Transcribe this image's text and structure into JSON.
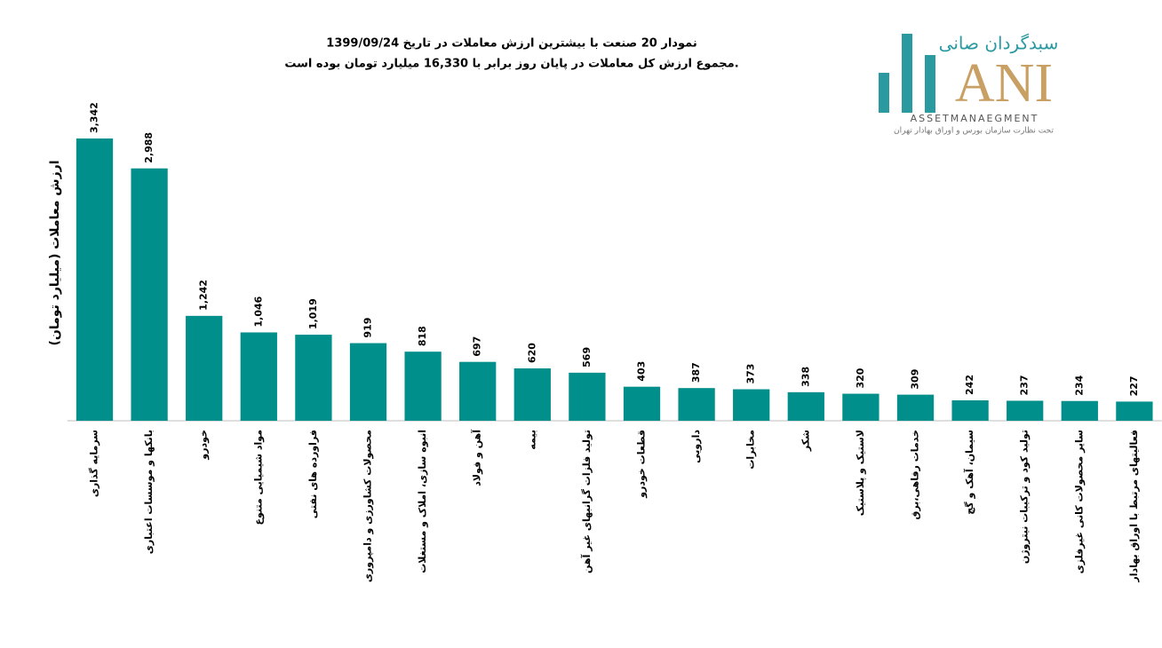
{
  "chart_data": {
    "type": "bar",
    "title": "نمودار  20 صنعت با بیشترین ارزش معاملات در تاریخ 1399/09/24",
    "subtitle": "مجموع ارزش  کل معاملات در پایان روز برابر با 16,330 میلیارد تومان بوده است.",
    "y_label": "ارزش معاملات (میلیارد تومان)",
    "categories": [
      "سرمایه گذاری",
      "بانکها و موسسات اعتباری",
      "خودرو",
      "مواد شیمیایی متنوع",
      "فراورده های نفتی",
      "محصولات کشاورزی و دامپروری",
      "انبوه سازی، املاک و مستغلات",
      "آهن و فولاد",
      "بیمه",
      "تولید فلزات گرانبهای غیر آهن",
      "قطعات خودرو",
      "دارویی",
      "مخابرات",
      "شکر",
      "لاستیک و پلاستیک",
      "خدمات رفاهی،برق",
      "سیمان، آهک و گچ",
      "تولید کود و ترکیبات نیتروژن",
      "سایر محصولات کانی غیرفلزی",
      "فعالیتهای مرتبط با اوراق بهادار"
    ],
    "values": [
      3342,
      2988,
      1242,
      1046,
      1019,
      919,
      818,
      697,
      620,
      569,
      403,
      387,
      373,
      338,
      320,
      309,
      242,
      237,
      234,
      227
    ],
    "value_labels": [
      "3,342",
      "2,988",
      "1,242",
      "1,046",
      "1,019",
      "919",
      "818",
      "697",
      "620",
      "569",
      "403",
      "387",
      "373",
      "338",
      "320",
      "309",
      "242",
      "237",
      "234",
      "227"
    ],
    "color": "#008f8a",
    "ylim": [
      0,
      3500
    ]
  },
  "logo": {
    "name": "سبدگردان صانی",
    "mark": "ANI",
    "tagline": "ASSETMANAEGMENT",
    "note": "تحت نظارت سازمان بورس و اوراق بهادار تهران"
  }
}
